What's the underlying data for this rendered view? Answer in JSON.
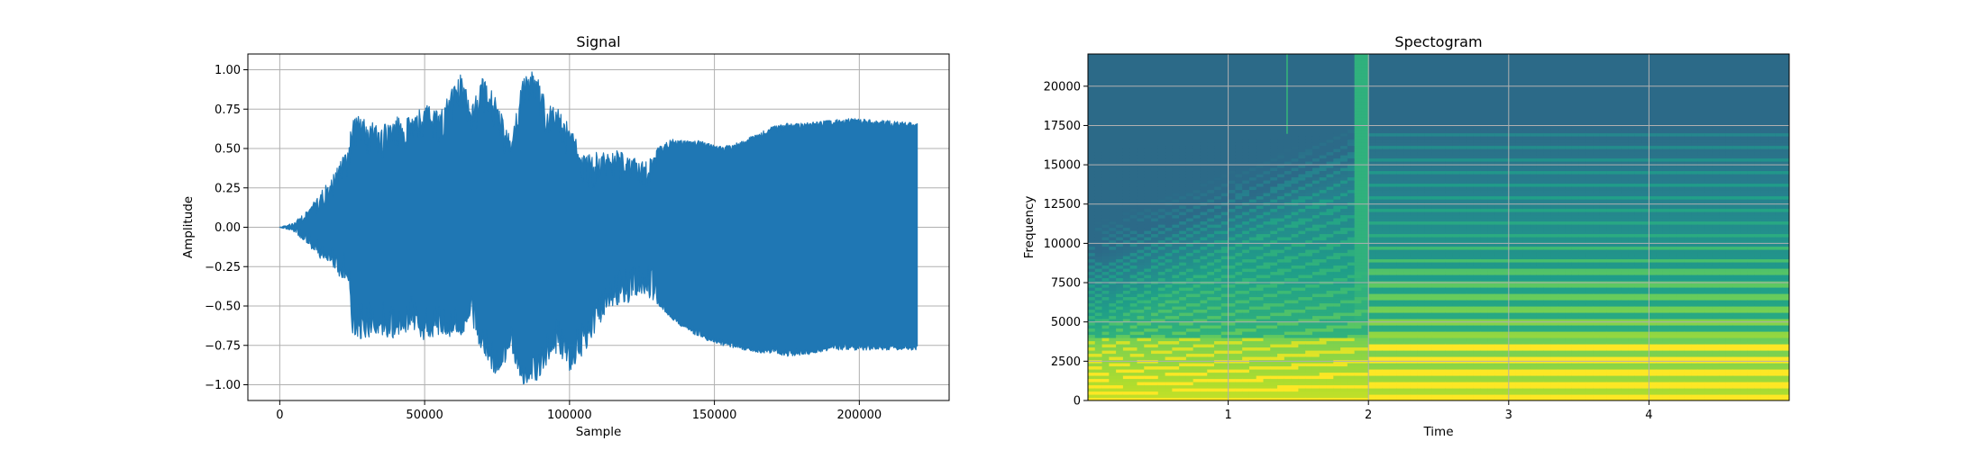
{
  "chart_data": [
    {
      "type": "area",
      "title": "Signal",
      "xlabel": "Sample",
      "ylabel": "Amplitude",
      "xlim": [
        -11000,
        231000
      ],
      "ylim": [
        -1.1,
        1.1
      ],
      "grid": true,
      "xticks": [
        0,
        50000,
        100000,
        150000,
        200000
      ],
      "xtick_labels": [
        "0",
        "50000",
        "100000",
        "150000",
        "200000"
      ],
      "yticks": [
        -1.0,
        -0.75,
        -0.5,
        -0.25,
        0.0,
        0.25,
        0.5,
        0.75,
        1.0
      ],
      "ytick_labels": [
        "−1.00",
        "−0.75",
        "−0.50",
        "−0.25",
        "0.00",
        "0.25",
        "0.50",
        "0.75",
        "1.00"
      ],
      "series": [
        {
          "color": "#1f77b4",
          "x": [
            0,
            5000,
            10000,
            15000,
            20000,
            24000,
            25000,
            30000,
            35000,
            40000,
            45000,
            50000,
            55000,
            60000,
            63000,
            66000,
            70000,
            75000,
            80000,
            84000,
            88000,
            92000,
            96000,
            100000,
            105000,
            110000,
            115000,
            120000,
            125000,
            130000,
            135000,
            140000,
            145000,
            150000,
            155000,
            160000,
            165000,
            170000,
            175000,
            180000,
            185000,
            190000,
            195000,
            200000,
            205000,
            210000,
            215000,
            220000
          ],
          "upper": [
            0.0,
            0.03,
            0.12,
            0.25,
            0.38,
            0.53,
            0.72,
            0.68,
            0.65,
            0.7,
            0.72,
            0.78,
            0.74,
            0.9,
            1.0,
            0.75,
            0.95,
            0.82,
            0.55,
            1.0,
            1.0,
            0.8,
            0.75,
            0.65,
            0.45,
            0.48,
            0.5,
            0.46,
            0.42,
            0.5,
            0.56,
            0.55,
            0.55,
            0.52,
            0.52,
            0.55,
            0.6,
            0.64,
            0.66,
            0.66,
            0.67,
            0.68,
            0.69,
            0.69,
            0.68,
            0.68,
            0.67,
            0.66
          ],
          "lower": [
            0.0,
            -0.03,
            -0.12,
            -0.22,
            -0.3,
            -0.38,
            -0.72,
            -0.7,
            -0.68,
            -0.72,
            -0.65,
            -0.72,
            -0.68,
            -0.7,
            -0.68,
            -0.6,
            -0.82,
            -0.95,
            -0.8,
            -1.0,
            -1.0,
            -0.88,
            -0.8,
            -0.92,
            -0.8,
            -0.62,
            -0.5,
            -0.48,
            -0.45,
            -0.48,
            -0.58,
            -0.65,
            -0.7,
            -0.74,
            -0.76,
            -0.78,
            -0.8,
            -0.8,
            -0.82,
            -0.82,
            -0.8,
            -0.78,
            -0.78,
            -0.78,
            -0.78,
            -0.78,
            -0.78,
            -0.78
          ]
        }
      ]
    },
    {
      "type": "heatmap",
      "title": "Spectogram",
      "xlabel": "Time",
      "ylabel": "Frequency",
      "xlim": [
        0,
        5.0
      ],
      "ylim": [
        0,
        22050
      ],
      "grid": true,
      "xticks": [
        1,
        2,
        3,
        4
      ],
      "xtick_labels": [
        "1",
        "2",
        "3",
        "4"
      ],
      "yticks": [
        0,
        2500,
        5000,
        7500,
        10000,
        12500,
        15000,
        17500,
        20000
      ],
      "ytick_labels": [
        "0",
        "2500",
        "5000",
        "7500",
        "10000",
        "12500",
        "15000",
        "17500",
        "20000"
      ],
      "colormap": "viridis",
      "colors": {
        "high": "#fde725",
        "upper": "#b5de2b",
        "mid": "#6ece58",
        "low": "#35b779",
        "lower": "#1f9e89",
        "floor": "#26828e",
        "empty": "#2c6a88"
      },
      "cutoff_hz": [
        16000,
        17500
      ],
      "event_time": 1.95,
      "harmonic_spacing_hz": 800
    }
  ]
}
